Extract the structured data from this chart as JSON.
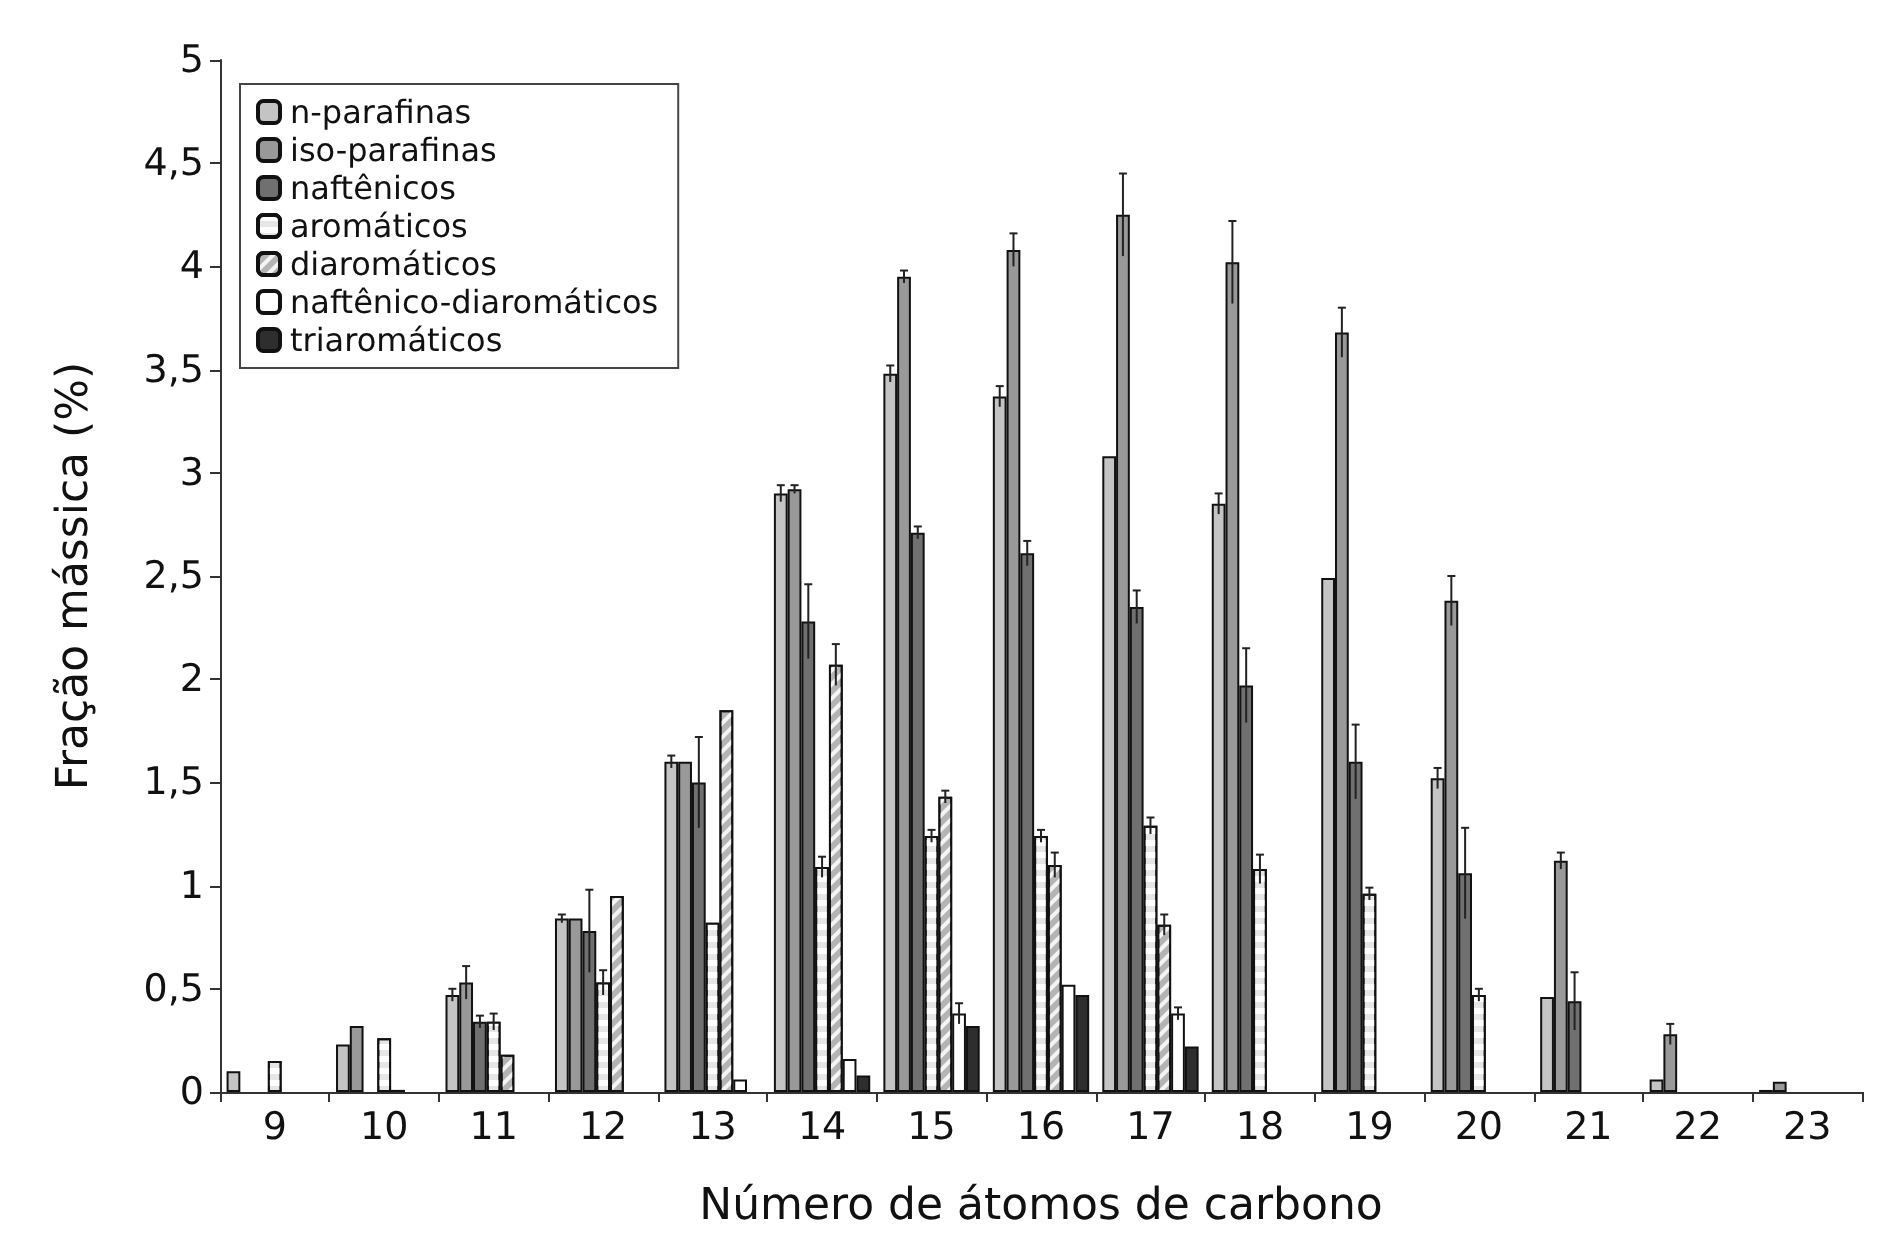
{
  "chart_data": {
    "type": "bar",
    "xlabel": "Número de átomos de carbono",
    "ylabel": "Fração mássica (%)",
    "categories": [
      "9",
      "10",
      "11",
      "12",
      "13",
      "14",
      "15",
      "16",
      "17",
      "18",
      "19",
      "20",
      "21",
      "22",
      "23"
    ],
    "series": [
      {
        "name": "n-parafinas",
        "color": "#c4c4c4",
        "values": [
          0.1,
          0.23,
          0.47,
          0.84,
          1.6,
          2.9,
          3.48,
          3.37,
          3.08,
          2.85,
          2.49,
          1.52,
          0.46,
          0.06,
          0.01
        ],
        "errors": [
          null,
          null,
          0.03,
          0.02,
          0.03,
          0.04,
          0.04,
          0.05,
          null,
          0.05,
          null,
          0.05,
          null,
          null,
          null
        ]
      },
      {
        "name": "iso-parafinas",
        "color": "#999999",
        "values": [
          null,
          0.32,
          0.53,
          0.84,
          1.6,
          2.92,
          3.95,
          4.08,
          4.25,
          4.02,
          3.68,
          2.38,
          1.12,
          0.28,
          0.05
        ],
        "errors": [
          null,
          null,
          0.08,
          null,
          null,
          0.02,
          0.03,
          0.08,
          0.2,
          0.2,
          0.12,
          0.12,
          0.04,
          0.05,
          null
        ]
      },
      {
        "name": "naftênicos",
        "color": "#707070",
        "values": [
          null,
          null,
          0.34,
          0.78,
          1.5,
          2.28,
          2.71,
          2.61,
          2.35,
          1.97,
          1.6,
          1.06,
          0.44,
          null,
          null
        ],
        "errors": [
          null,
          null,
          0.03,
          0.2,
          0.22,
          0.18,
          0.03,
          0.06,
          0.08,
          0.18,
          0.18,
          0.22,
          0.14,
          null,
          null
        ]
      },
      {
        "name": "aromáticos",
        "color": "#e6e6e6",
        "values": [
          0.15,
          0.26,
          0.34,
          0.53,
          0.82,
          1.09,
          1.24,
          1.24,
          1.29,
          1.08,
          0.96,
          0.47,
          null,
          null,
          null
        ],
        "errors": [
          null,
          null,
          0.04,
          0.06,
          null,
          0.05,
          0.03,
          0.03,
          0.04,
          0.07,
          0.03,
          0.03,
          null,
          null,
          null
        ]
      },
      {
        "name": "diaromáticos",
        "color": "#b4b4b4",
        "values": [
          null,
          0.01,
          0.18,
          0.95,
          1.85,
          2.07,
          1.43,
          1.1,
          0.81,
          null,
          null,
          null,
          null,
          null,
          null
        ],
        "errors": [
          null,
          null,
          null,
          null,
          null,
          0.1,
          0.03,
          0.06,
          0.05,
          null,
          null,
          null,
          null,
          null,
          null
        ]
      },
      {
        "name": "naftênico-diaromáticos",
        "color": "#ffffff",
        "values": [
          null,
          null,
          null,
          null,
          0.06,
          0.16,
          0.38,
          0.52,
          0.38,
          null,
          null,
          null,
          null,
          null,
          null
        ],
        "errors": [
          null,
          null,
          null,
          null,
          null,
          null,
          0.05,
          null,
          0.03,
          null,
          null,
          null,
          null,
          null,
          null
        ]
      },
      {
        "name": "triaromáticos",
        "color": "#2e2e2e",
        "values": [
          null,
          null,
          null,
          null,
          null,
          0.08,
          0.32,
          0.47,
          0.22,
          null,
          null,
          null,
          null,
          null,
          null
        ]
      }
    ],
    "ylim": [
      0,
      5
    ],
    "yticks": [
      0,
      {
        "value": 0.5,
        "label": "0,5"
      },
      1,
      {
        "value": 1.5,
        "label": "1,5"
      },
      2,
      {
        "value": 2.5,
        "label": "2,5"
      },
      3,
      {
        "value": 3.5,
        "label": "3,5"
      },
      4,
      {
        "value": 4.5,
        "label": "4,5"
      },
      5
    ],
    "grid": false,
    "legend": "top left"
  }
}
